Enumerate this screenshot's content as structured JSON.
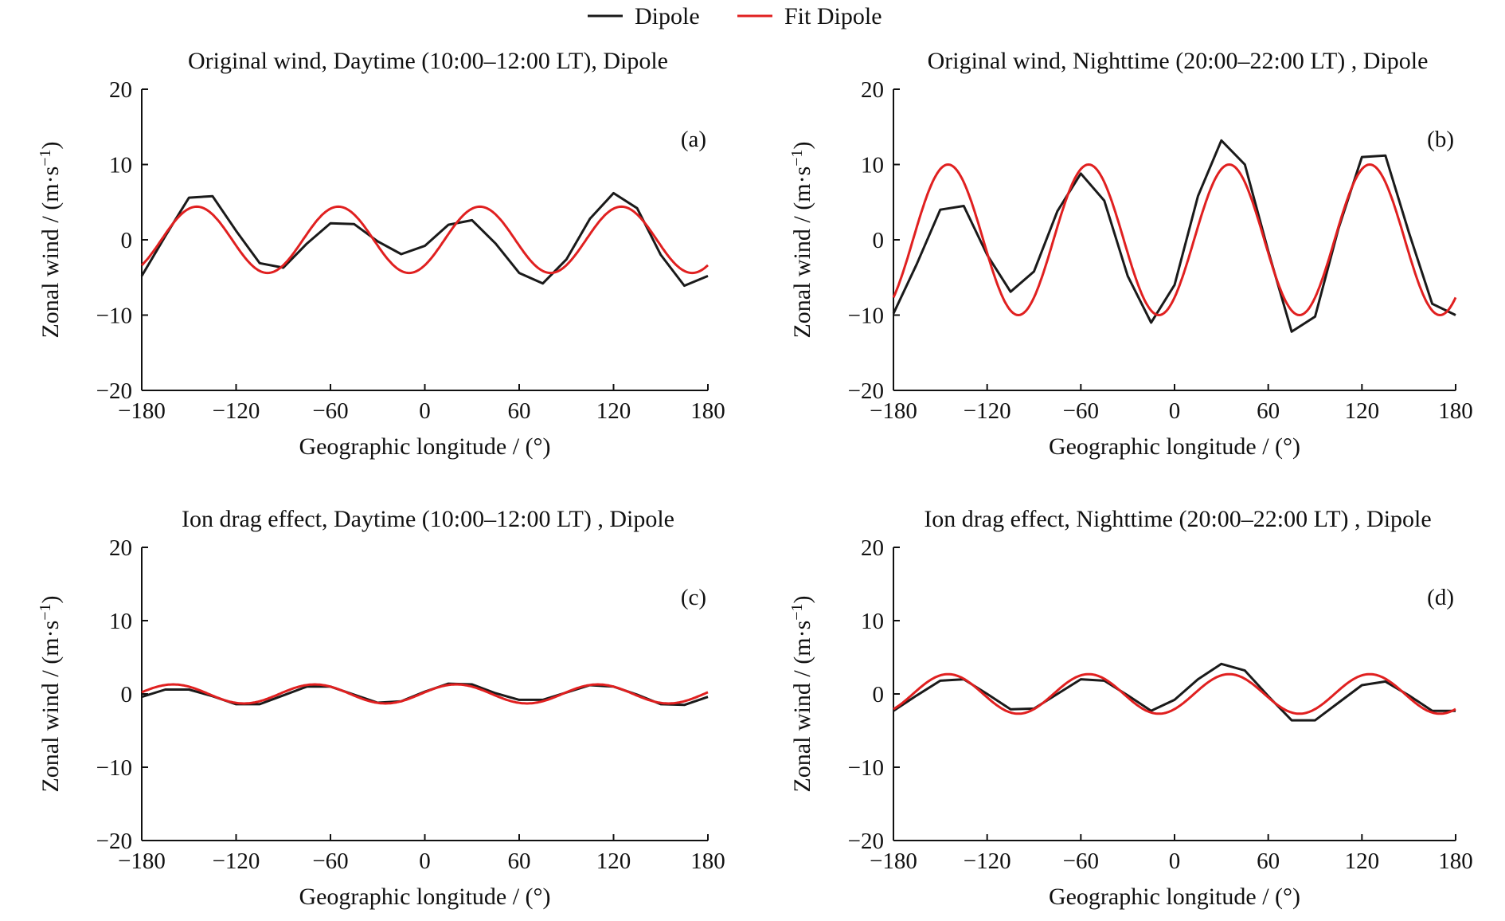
{
  "legend": [
    {
      "label": "Dipole",
      "color": "#1a1a1a"
    },
    {
      "label": "Fit Dipole",
      "color": "#e02020"
    }
  ],
  "chart_data": [
    {
      "type": "line",
      "tag": "(a)",
      "title": "Original wind, Daytime (10:00‒12:00 LT), Dipole",
      "xlabel": "Geographic longitude / (°)",
      "ylabel_main": "Zonal wind / (m·s",
      "ylabel_sup": "−1",
      "ylabel_end": ")",
      "xlim": [
        -180,
        180
      ],
      "ylim": [
        -20,
        20
      ],
      "xticks": [
        -180,
        -120,
        -60,
        0,
        60,
        120,
        180
      ],
      "xtick_labels": [
        "−180",
        "−120",
        "−60",
        "0",
        "60",
        "120",
        "180"
      ],
      "yticks": [
        -20,
        -10,
        0,
        10,
        20
      ],
      "ytick_labels": [
        "−20",
        "−10",
        "0",
        "10",
        "20"
      ],
      "series": [
        {
          "name": "Dipole",
          "x": [
            -180,
            -165,
            -150,
            -135,
            -120,
            -105,
            -90,
            -75,
            -60,
            -45,
            -30,
            -15,
            0,
            15,
            30,
            45,
            60,
            75,
            90,
            105,
            120,
            135,
            150,
            165,
            180
          ],
          "y": [
            -4.8,
            0.5,
            5.6,
            5.8,
            1.2,
            -3.1,
            -3.7,
            -0.5,
            2.2,
            2.1,
            -0.2,
            -1.9,
            -0.8,
            2.0,
            2.6,
            -0.5,
            -4.4,
            -5.8,
            -2.6,
            2.8,
            6.2,
            4.2,
            -2.0,
            -6.1,
            -4.8
          ]
        },
        {
          "name": "Fit Dipole",
          "amplitude": 4.4,
          "wavenumber": 4,
          "phase_deg": 35,
          "x_range": [
            -180,
            180
          ],
          "y_at": [
            [
              -180,
              -3.4
            ],
            [
              -145,
              4.4
            ],
            [
              -100,
              -4.4
            ],
            [
              -55,
              4.4
            ],
            [
              -10,
              -4.4
            ],
            [
              35,
              4.4
            ],
            [
              80,
              -4.4
            ],
            [
              125,
              4.4
            ],
            [
              170,
              -4.4
            ],
            [
              180,
              -3.4
            ]
          ]
        }
      ]
    },
    {
      "type": "line",
      "tag": "(b)",
      "title": "Original wind, Nighttime (20:00‒22:00 LT) , Dipole",
      "xlabel": "Geographic longitude / (°)",
      "ylabel_main": "Zonal wind / (m·s",
      "ylabel_sup": "−1",
      "ylabel_end": ")",
      "xlim": [
        -180,
        180
      ],
      "ylim": [
        -20,
        20
      ],
      "xticks": [
        -180,
        -120,
        -60,
        0,
        60,
        120,
        180
      ],
      "xtick_labels": [
        "−180",
        "−120",
        "−60",
        "0",
        "60",
        "120",
        "180"
      ],
      "yticks": [
        -20,
        -10,
        0,
        10,
        20
      ],
      "ytick_labels": [
        "−20",
        "−10",
        "0",
        "10",
        "20"
      ],
      "series": [
        {
          "name": "Dipole",
          "x": [
            -180,
            -165,
            -150,
            -135,
            -120,
            -105,
            -90,
            -75,
            -60,
            -45,
            -30,
            -15,
            0,
            15,
            30,
            45,
            60,
            75,
            90,
            105,
            120,
            135,
            150,
            165,
            180
          ],
          "y": [
            -9.8,
            -3.2,
            4.0,
            4.5,
            -2.0,
            -6.9,
            -4.2,
            3.8,
            8.8,
            5.2,
            -4.8,
            -11.0,
            -6.0,
            5.8,
            13.2,
            10.0,
            -1.5,
            -12.2,
            -10.2,
            1.5,
            11.0,
            11.2,
            1.0,
            -8.5,
            -10.0
          ]
        },
        {
          "name": "Fit Dipole",
          "amplitude": 10.0,
          "wavenumber": 4,
          "phase_deg": 35,
          "x_range": [
            -180,
            180
          ],
          "y_at": [
            [
              -180,
              -7.7
            ],
            [
              -145,
              10.0
            ],
            [
              -100,
              -10.0
            ],
            [
              -55,
              10.0
            ],
            [
              -10,
              -10.0
            ],
            [
              35,
              10.0
            ],
            [
              80,
              -10.0
            ],
            [
              125,
              10.0
            ],
            [
              170,
              -10.0
            ],
            [
              180,
              -7.7
            ]
          ]
        }
      ]
    },
    {
      "type": "line",
      "tag": "(c)",
      "title": "Ion drag effect, Daytime (10:00‒12:00 LT) , Dipole",
      "xlabel": "Geographic longitude / (°)",
      "ylabel_main": "Zonal wind / (m·s",
      "ylabel_sup": "−1",
      "ylabel_end": ")",
      "xlim": [
        -180,
        180
      ],
      "ylim": [
        -20,
        20
      ],
      "xticks": [
        -180,
        -120,
        -60,
        0,
        60,
        120,
        180
      ],
      "xtick_labels": [
        "−180",
        "−120",
        "−60",
        "0",
        "60",
        "120",
        "180"
      ],
      "yticks": [
        -20,
        -10,
        0,
        10,
        20
      ],
      "ytick_labels": [
        "−20",
        "−10",
        "0",
        "10",
        "20"
      ],
      "series": [
        {
          "name": "Dipole",
          "x": [
            -180,
            -165,
            -150,
            -135,
            -120,
            -105,
            -90,
            -75,
            -60,
            -45,
            -30,
            -15,
            0,
            15,
            30,
            45,
            60,
            75,
            90,
            105,
            120,
            135,
            150,
            165,
            180
          ],
          "y": [
            -0.4,
            0.6,
            0.6,
            -0.3,
            -1.4,
            -1.4,
            -0.2,
            1.0,
            1.0,
            -0.1,
            -1.2,
            -1.0,
            0.3,
            1.4,
            1.3,
            0.1,
            -0.8,
            -0.8,
            0.2,
            1.2,
            1.0,
            -0.1,
            -1.4,
            -1.5,
            -0.4
          ]
        },
        {
          "name": "Fit Dipole",
          "amplitude": 1.3,
          "wavenumber": 4,
          "phase_deg": 20,
          "x_range": [
            -180,
            180
          ],
          "y_at": [
            [
              -180,
              -0.2
            ],
            [
              -160,
              1.3
            ],
            [
              -115,
              -1.3
            ],
            [
              -70,
              1.3
            ],
            [
              -25,
              -1.3
            ],
            [
              20,
              1.3
            ],
            [
              65,
              -1.3
            ],
            [
              110,
              1.3
            ],
            [
              155,
              -1.3
            ],
            [
              180,
              -0.2
            ]
          ]
        }
      ]
    },
    {
      "type": "line",
      "tag": "(d)",
      "title": "Ion drag effect, Nighttime (20:00‒22:00 LT) , Dipole",
      "xlabel": "Geographic longitude / (°)",
      "ylabel_main": "Zonal wind / (m·s",
      "ylabel_sup": "−1",
      "ylabel_end": ")",
      "xlim": [
        -180,
        180
      ],
      "ylim": [
        -20,
        20
      ],
      "xticks": [
        -180,
        -120,
        -60,
        0,
        60,
        120,
        180
      ],
      "xtick_labels": [
        "−180",
        "−120",
        "−60",
        "0",
        "60",
        "120",
        "180"
      ],
      "yticks": [
        -20,
        -10,
        0,
        10,
        20
      ],
      "ytick_labels": [
        "−20",
        "−10",
        "0",
        "10",
        "20"
      ],
      "series": [
        {
          "name": "Dipole",
          "x": [
            -180,
            -165,
            -150,
            -135,
            -120,
            -105,
            -90,
            -75,
            -60,
            -45,
            -30,
            -15,
            0,
            15,
            30,
            45,
            60,
            75,
            90,
            105,
            120,
            135,
            150,
            165,
            180
          ],
          "y": [
            -2.3,
            -0.2,
            1.8,
            2.0,
            0.0,
            -2.1,
            -2.0,
            0.0,
            2.0,
            1.8,
            -0.2,
            -2.3,
            -0.8,
            2.0,
            4.1,
            3.2,
            -0.3,
            -3.6,
            -3.6,
            -1.2,
            1.2,
            1.7,
            -0.2,
            -2.3,
            -2.3
          ]
        },
        {
          "name": "Fit Dipole",
          "amplitude": 2.7,
          "wavenumber": 4,
          "phase_deg": 35,
          "x_range": [
            -180,
            180
          ],
          "y_at": [
            [
              -180,
              -2.1
            ],
            [
              -145,
              2.7
            ],
            [
              -100,
              -2.7
            ],
            [
              -55,
              2.7
            ],
            [
              -10,
              -2.7
            ],
            [
              35,
              2.7
            ],
            [
              80,
              -2.7
            ],
            [
              125,
              2.7
            ],
            [
              170,
              -2.7
            ],
            [
              180,
              -2.1
            ]
          ]
        }
      ]
    }
  ]
}
